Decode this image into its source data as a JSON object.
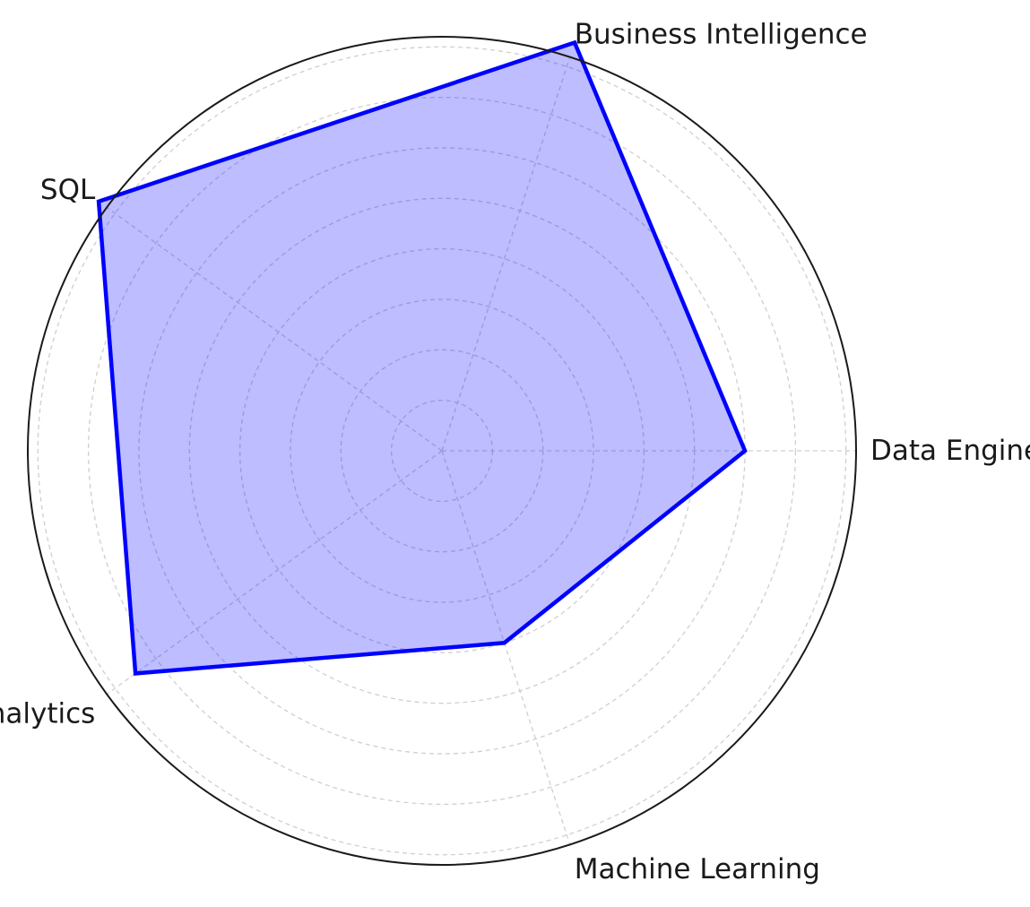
{
  "chart_data": {
    "type": "radar",
    "title": "",
    "categories": [
      "Data Engineering",
      "Business Intelligence",
      "SQL",
      "Analytics",
      "Machine Learning"
    ],
    "series": [
      {
        "values": [
          6.0,
          8.5,
          8.4,
          7.5,
          4.0
        ]
      }
    ],
    "rlim": [
      0,
      8.2
    ],
    "ring_step": 1,
    "grid": true,
    "colors": {
      "line": "#0000ff",
      "fill": "#0000ff",
      "fill_opacity": 0.26,
      "grid": "#cfcfcf",
      "frame": "#1a1a1a"
    }
  }
}
